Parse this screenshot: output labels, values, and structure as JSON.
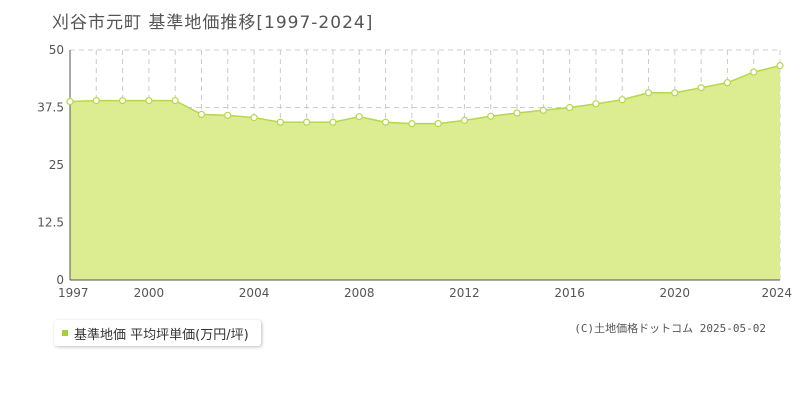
{
  "chart_data": {
    "type": "area",
    "title": "刈谷市元町 基準地価推移[1997-2024]",
    "x": [
      1997,
      1998,
      1999,
      2000,
      2001,
      2002,
      2003,
      2004,
      2005,
      2006,
      2007,
      2008,
      2009,
      2010,
      2011,
      2012,
      2013,
      2014,
      2015,
      2016,
      2017,
      2018,
      2019,
      2020,
      2021,
      2022,
      2023,
      2024
    ],
    "series": [
      {
        "name": "基準地価 平均坪単価(万円/坪)",
        "values": [
          38.8,
          39.0,
          39.0,
          39.0,
          39.0,
          36.0,
          35.8,
          35.3,
          34.3,
          34.3,
          34.3,
          35.5,
          34.3,
          34.0,
          34.0,
          34.7,
          35.6,
          36.3,
          36.9,
          37.5,
          38.3,
          39.2,
          40.7,
          40.7,
          41.8,
          42.9,
          45.2,
          46.6
        ]
      }
    ],
    "xlim": [
      1997,
      2024
    ],
    "ylim": [
      0,
      50
    ],
    "yticks": [
      "0",
      "12.5",
      "25",
      "37.5",
      "50"
    ],
    "xticks": [
      "1997",
      "2000",
      "2004",
      "2008",
      "2012",
      "2016",
      "2020",
      "2024"
    ],
    "xlabel": "",
    "ylabel": "",
    "grid": true,
    "legend_position": "bottom-left",
    "colors": {
      "fill": "#dcec91",
      "line": "#b5d84a",
      "marker_fill": "#ffffff",
      "marker_stroke": "#b5d84a",
      "grid": "#cccccc",
      "legend_swatch": "#a7cf3a"
    }
  },
  "copyright": "(C)土地価格ドットコム 2025-05-02"
}
